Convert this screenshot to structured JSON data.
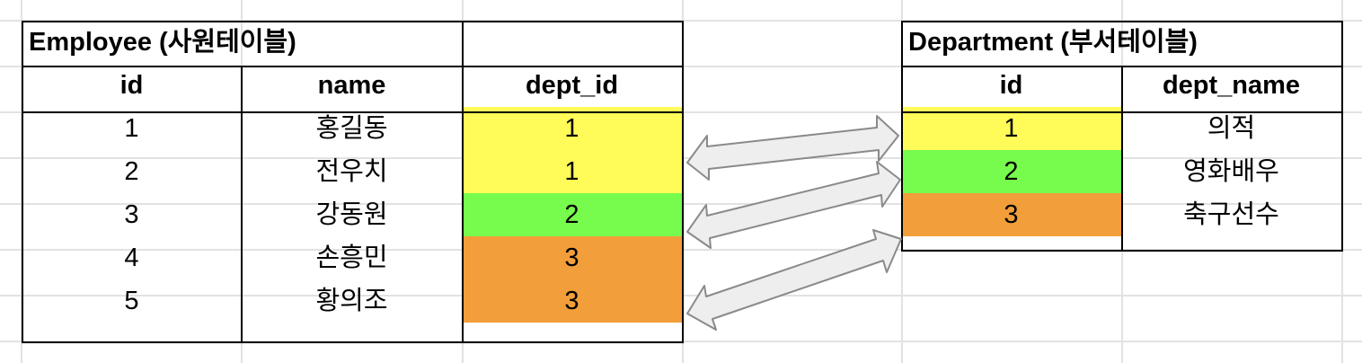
{
  "colors": {
    "dept1": "#fffb58",
    "dept2": "#77fb4c",
    "dept3": "#f29e3a",
    "arrow_fill": "#eeeeee",
    "arrow_stroke": "#8a8a8a",
    "gridline": "#e2e2e2"
  },
  "employee": {
    "title": "Employee (사원테이블)",
    "headers": [
      "id",
      "name",
      "dept_id"
    ],
    "rows": [
      {
        "id": "1",
        "name": "홍길동",
        "dept_id": "1"
      },
      {
        "id": "2",
        "name": "전우치",
        "dept_id": "1"
      },
      {
        "id": "3",
        "name": "강동원",
        "dept_id": "2"
      },
      {
        "id": "4",
        "name": "손흥민",
        "dept_id": "3"
      },
      {
        "id": "5",
        "name": "황의조",
        "dept_id": "3"
      }
    ]
  },
  "department": {
    "title": "Department (부서테이블)",
    "headers": [
      "id",
      "dept_name"
    ],
    "rows": [
      {
        "id": "1",
        "dept_name": "의적"
      },
      {
        "id": "2",
        "dept_name": "영화배우"
      },
      {
        "id": "3",
        "dept_name": "축구선수"
      }
    ]
  }
}
